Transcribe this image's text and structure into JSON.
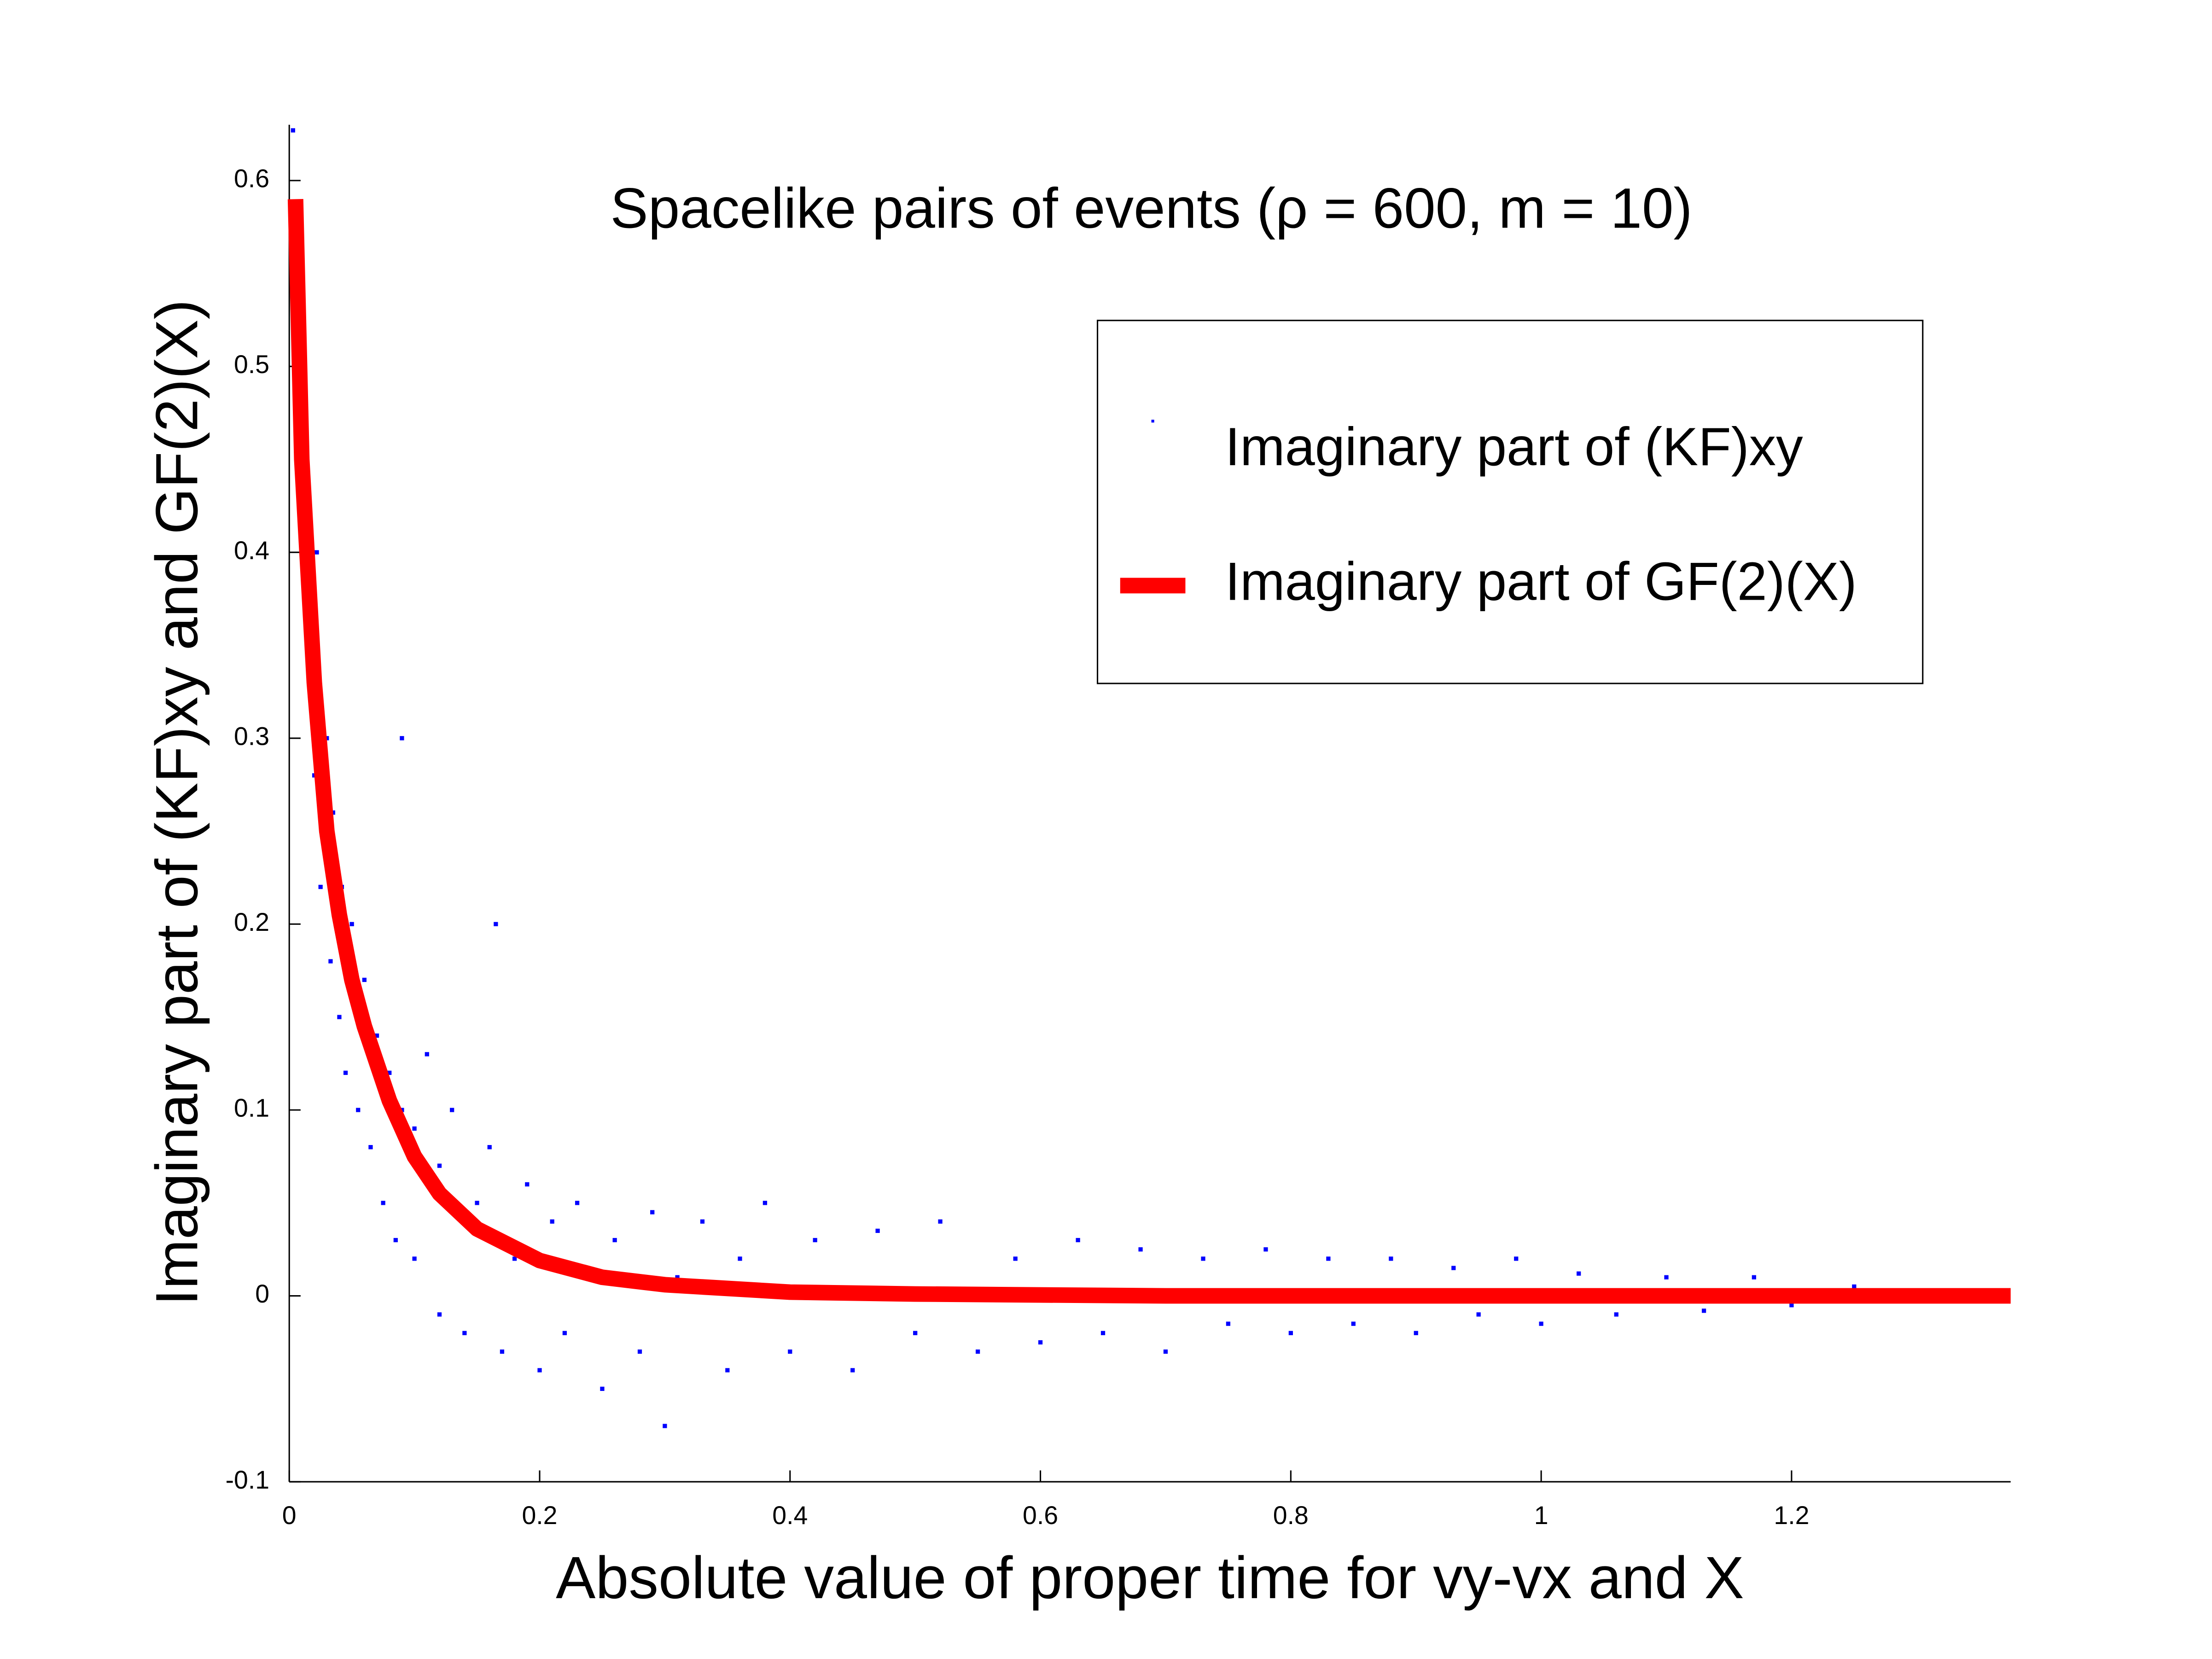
{
  "chart_data": {
    "type": "scatter",
    "title": "Spacelike pairs of events (ρ = 600, m = 10)",
    "xlabel": "Absolute value of proper time for vy-vx and X",
    "ylabel": "Imaginary part of (KF)xy and GF(2)(X)",
    "xlim": [
      0,
      1.375
    ],
    "ylim": [
      -0.1,
      0.63
    ],
    "xticks": [
      0,
      0.2,
      0.4,
      0.6,
      0.8,
      1,
      1.2
    ],
    "yticks": [
      -0.1,
      0,
      0.1,
      0.2,
      0.3,
      0.4,
      0.5,
      0.6
    ],
    "grid": false,
    "legend": "upper right",
    "series": [
      {
        "name": "Imaginary part of (KF)xy",
        "color": "#0000ff",
        "type": "scatter",
        "x": [
          0.003,
          0.01,
          0.012,
          0.015,
          0.02,
          0.022,
          0.025,
          0.03,
          0.033,
          0.035,
          0.04,
          0.042,
          0.045,
          0.05,
          0.055,
          0.06,
          0.065,
          0.07,
          0.075,
          0.08,
          0.085,
          0.09,
          0.09,
          0.1,
          0.1,
          0.11,
          0.12,
          0.12,
          0.13,
          0.14,
          0.15,
          0.16,
          0.165,
          0.17,
          0.18,
          0.19,
          0.2,
          0.21,
          0.22,
          0.23,
          0.25,
          0.26,
          0.28,
          0.29,
          0.3,
          0.31,
          0.33,
          0.35,
          0.36,
          0.38,
          0.4,
          0.42,
          0.45,
          0.47,
          0.5,
          0.52,
          0.55,
          0.58,
          0.6,
          0.63,
          0.65,
          0.68,
          0.7,
          0.73,
          0.75,
          0.78,
          0.8,
          0.83,
          0.85,
          0.88,
          0.9,
          0.93,
          0.95,
          0.98,
          1.0,
          1.03,
          1.06,
          1.1,
          1.13,
          1.17,
          1.2,
          1.25
        ],
        "values": [
          0.627,
          0.42,
          0.5,
          0.36,
          0.28,
          0.4,
          0.22,
          0.3,
          0.18,
          0.26,
          0.15,
          0.22,
          0.12,
          0.2,
          0.1,
          0.17,
          0.08,
          0.14,
          0.05,
          0.12,
          0.03,
          0.1,
          0.3,
          0.02,
          0.09,
          0.13,
          -0.01,
          0.07,
          0.1,
          -0.02,
          0.05,
          0.08,
          0.2,
          -0.03,
          0.02,
          0.06,
          -0.04,
          0.04,
          -0.02,
          0.05,
          -0.05,
          0.03,
          -0.03,
          0.045,
          -0.07,
          0.01,
          0.04,
          -0.04,
          0.02,
          0.05,
          -0.03,
          0.03,
          -0.04,
          0.035,
          -0.02,
          0.04,
          -0.03,
          0.02,
          -0.025,
          0.03,
          -0.02,
          0.025,
          -0.03,
          0.02,
          -0.015,
          0.025,
          -0.02,
          0.02,
          -0.015,
          0.02,
          -0.02,
          0.015,
          -0.01,
          0.02,
          -0.015,
          0.012,
          -0.01,
          0.01,
          -0.008,
          0.01,
          -0.005,
          0.005
        ]
      },
      {
        "name": "Imaginary part of GF(2)(X)",
        "color": "#ff0000",
        "type": "line",
        "x": [
          0.005,
          0.01,
          0.02,
          0.03,
          0.04,
          0.05,
          0.06,
          0.08,
          0.1,
          0.12,
          0.15,
          0.2,
          0.25,
          0.3,
          0.4,
          0.5,
          0.7,
          1.0,
          1.375
        ],
        "values": [
          0.59,
          0.45,
          0.33,
          0.25,
          0.205,
          0.17,
          0.145,
          0.105,
          0.075,
          0.055,
          0.036,
          0.019,
          0.01,
          0.006,
          0.002,
          0.001,
          0,
          0,
          0
        ]
      }
    ]
  }
}
